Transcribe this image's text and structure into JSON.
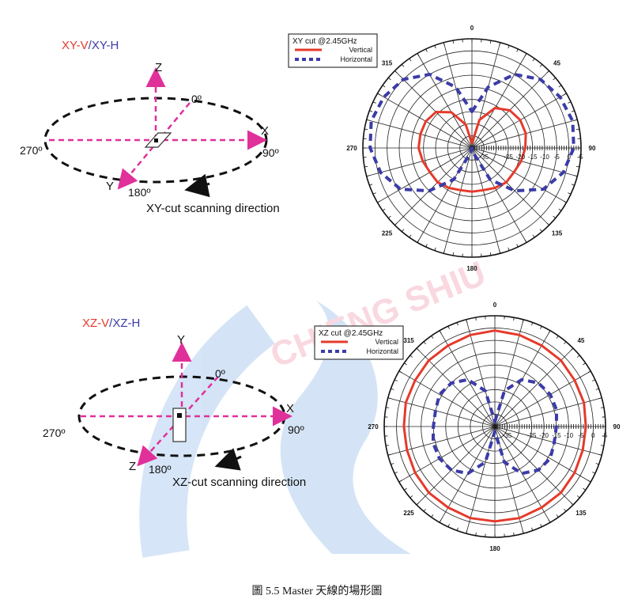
{
  "caption": "圖 5.5 Master 天線的場形圖",
  "watermark": {
    "text": "CHIENG SHIU",
    "logo_name": "university-logo"
  },
  "colors": {
    "vertical": "#e53a2b",
    "horizontal": "#3b3ba8",
    "axis_pink": "#e0309a",
    "ring_black": "#111111"
  },
  "panels": [
    {
      "id": "xy",
      "title_v": "XY-V",
      "title_sep": "/",
      "title_h": "XY-H",
      "axis_up": "Z",
      "axis_right": "X",
      "axis_diag": "Y",
      "angle_0": "0º",
      "angle_90": "90º",
      "angle_180": "180º",
      "angle_270": "270º",
      "scan_label": "XY-cut scanning direction"
    },
    {
      "id": "xz",
      "title_v": "XZ-V",
      "title_sep": "/",
      "title_h": "XZ-H",
      "axis_up": "Y",
      "axis_right": "X",
      "axis_diag": "Z",
      "angle_0": "0º",
      "angle_90": "90º",
      "angle_180": "180º",
      "angle_270": "270º",
      "scan_label": "XZ-cut scanning direction"
    }
  ],
  "chart_data": [
    {
      "type": "polar",
      "title": "XY cut @2.45GHz",
      "angle_labels": [
        "0",
        "45",
        "90",
        "135",
        "180",
        "225",
        "270",
        "315"
      ],
      "radial_ticks": [
        "-35",
        "-25",
        "-20",
        "-15",
        "-10",
        "-5",
        "0",
        "5"
      ],
      "rlim": [
        -40,
        5
      ],
      "legend_position": "outside top-left",
      "series": [
        {
          "name": "Vertical",
          "style": "solid",
          "theta_deg": [
            0,
            15,
            30,
            45,
            60,
            75,
            90,
            105,
            120,
            135,
            150,
            165,
            180,
            195,
            210,
            225,
            240,
            255,
            270,
            285,
            300,
            315,
            330,
            345
          ],
          "r_db": [
            -38,
            -28,
            -21,
            -18,
            -17,
            -17,
            -18,
            -19,
            -20,
            -20,
            -21,
            -22,
            -22,
            -22,
            -21,
            -20,
            -20,
            -19,
            -18,
            -18,
            -18,
            -19,
            -23,
            -30
          ]
        },
        {
          "name": "Horizontal",
          "style": "dashed",
          "theta_deg": [
            0,
            15,
            30,
            45,
            60,
            75,
            90,
            105,
            120,
            135,
            150,
            165,
            180,
            195,
            210,
            225,
            240,
            255,
            270,
            285,
            300,
            315,
            330,
            345
          ],
          "r_db": [
            -25,
            -14,
            -5,
            0,
            2,
            3,
            2,
            -1,
            -6,
            -15,
            -25,
            -38,
            -40,
            -38,
            -25,
            -15,
            -6,
            -1,
            2,
            3,
            2,
            0,
            -5,
            -14
          ]
        }
      ]
    },
    {
      "type": "polar",
      "title": "XZ cut @2.45GHz",
      "angle_labels": [
        "0",
        "45",
        "90",
        "135",
        "180",
        "225",
        "270",
        "315"
      ],
      "radial_ticks": [
        "-35",
        "-25",
        "-20",
        "-15",
        "-10",
        "-5",
        "0",
        "5"
      ],
      "rlim": [
        -40,
        5
      ],
      "legend_position": "outside top-left",
      "series": [
        {
          "name": "Vertical",
          "style": "solid",
          "theta_deg": [
            0,
            15,
            30,
            45,
            60,
            75,
            90,
            105,
            120,
            135,
            150,
            165,
            180,
            195,
            210,
            225,
            240,
            255,
            270,
            285,
            300,
            315,
            330,
            345
          ],
          "r_db": [
            -1,
            -1.5,
            -2,
            -2,
            -2.5,
            -2.5,
            -3,
            -3,
            -2.5,
            -2,
            -2,
            -1.5,
            -1.5,
            -1.5,
            -2,
            -2,
            -2.5,
            -3,
            -3,
            -2.5,
            -2.5,
            -2,
            -2,
            -1.5
          ]
        },
        {
          "name": "Horizontal",
          "style": "dashed",
          "theta_deg": [
            0,
            15,
            30,
            45,
            60,
            75,
            90,
            105,
            120,
            135,
            150,
            165,
            180,
            195,
            210,
            225,
            240,
            255,
            270,
            285,
            300,
            315,
            330,
            345
          ],
          "r_db": [
            -38,
            -25,
            -18,
            -15,
            -14,
            -14,
            -15,
            -15,
            -14,
            -15,
            -18,
            -25,
            -38,
            -25,
            -18,
            -15,
            -14,
            -14,
            -15,
            -15,
            -14,
            -15,
            -18,
            -25
          ]
        }
      ]
    }
  ]
}
